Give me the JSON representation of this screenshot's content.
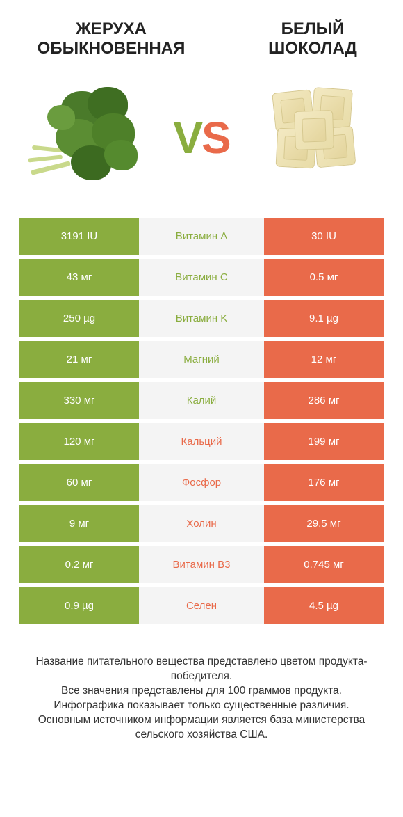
{
  "colors": {
    "green": "#8aad3f",
    "orange": "#e96a4a",
    "mid_bg": "#f4f4f4",
    "text_white": "#ffffff",
    "text_dark": "#333333"
  },
  "header": {
    "left_title": "ЖЕРУХА\nОБЫКНОВЕННАЯ",
    "right_title": "БЕЛЫЙ\nШОКОЛАД",
    "vs_v": "V",
    "vs_s": "S"
  },
  "table": {
    "rows": [
      {
        "nutrient": "Витамин A",
        "left": "3191 IU",
        "right": "30 IU",
        "winner": "left"
      },
      {
        "nutrient": "Витамин C",
        "left": "43 мг",
        "right": "0.5 мг",
        "winner": "left"
      },
      {
        "nutrient": "Витамин K",
        "left": "250 µg",
        "right": "9.1 µg",
        "winner": "left"
      },
      {
        "nutrient": "Магний",
        "left": "21 мг",
        "right": "12 мг",
        "winner": "left"
      },
      {
        "nutrient": "Калий",
        "left": "330 мг",
        "right": "286 мг",
        "winner": "left"
      },
      {
        "nutrient": "Кальций",
        "left": "120 мг",
        "right": "199 мг",
        "winner": "right"
      },
      {
        "nutrient": "Фосфор",
        "left": "60 мг",
        "right": "176 мг",
        "winner": "right"
      },
      {
        "nutrient": "Холин",
        "left": "9 мг",
        "right": "29.5 мг",
        "winner": "right"
      },
      {
        "nutrient": "Витамин B3",
        "left": "0.2 мг",
        "right": "0.745 мг",
        "winner": "right"
      },
      {
        "nutrient": "Селен",
        "left": "0.9 µg",
        "right": "4.5 µg",
        "winner": "right"
      }
    ]
  },
  "footnote": "Название питательного вещества представлено цветом продукта-победителя.\nВсе значения представлены для 100 граммов продукта.\nИнфографика показывает только существенные различия.\nОсновным источником информации является база министерства сельского хозяйства США."
}
